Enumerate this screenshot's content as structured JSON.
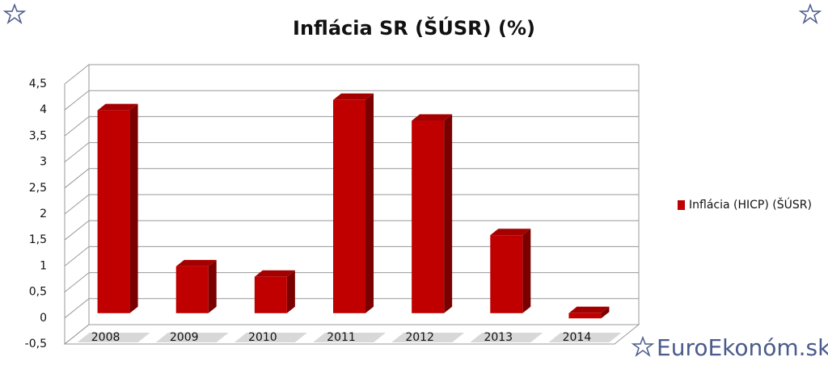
{
  "chart_data": {
    "type": "bar3d",
    "title": "Inflácia SR (ŠÚSR) (%)",
    "categories": [
      "2008",
      "2009",
      "2010",
      "2011",
      "2012",
      "2013",
      "2014"
    ],
    "series": [
      {
        "name": "Inflácia (HICP) (ŠÚSR)",
        "color": "#c00000",
        "values": [
          3.9,
          0.9,
          0.7,
          4.1,
          3.7,
          1.5,
          -0.1
        ]
      }
    ],
    "ylim": [
      -0.5,
      4.5
    ],
    "yticks": [
      {
        "value": -0.5,
        "label": "-0,5"
      },
      0,
      {
        "value": 0.5,
        "label": "0,5"
      },
      1,
      {
        "value": 1.5,
        "label": "1,5"
      },
      2,
      {
        "value": 2.5,
        "label": "2,5"
      },
      3,
      {
        "value": 3.5,
        "label": "3,5"
      },
      4,
      {
        "value": 4.5,
        "label": "4,5"
      }
    ],
    "grid": true,
    "legend": "right"
  },
  "footer": {
    "brand": "EuroEkonóm.sk"
  }
}
